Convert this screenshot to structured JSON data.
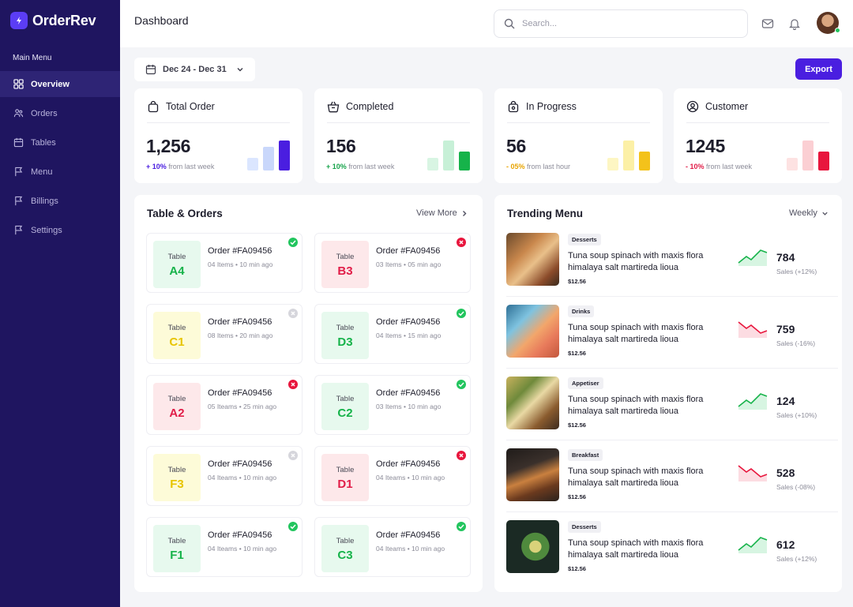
{
  "brand": {
    "name": "OrderRev"
  },
  "sidebar": {
    "heading": "Main Menu",
    "items": [
      {
        "label": "Overview",
        "icon": "grid-icon",
        "active": true
      },
      {
        "label": "Orders",
        "icon": "users-icon"
      },
      {
        "label": "Tables",
        "icon": "calendar-icon"
      },
      {
        "label": "Menu",
        "icon": "flag-icon"
      },
      {
        "label": "Billings",
        "icon": "flag-icon"
      },
      {
        "label": "Settings",
        "icon": "flag-icon"
      }
    ]
  },
  "header": {
    "title": "Dashboard",
    "search_placeholder": "Search..."
  },
  "toolbar": {
    "date_range": "Dec 24 - Dec 31",
    "export_label": "Export"
  },
  "stats": [
    {
      "title": "Total Order",
      "icon": "bag-icon",
      "value": "1,256",
      "change": "+ 10%",
      "note": "from last week",
      "change_color": "#4a1ee0",
      "bar_colors": [
        "#dbe6ff",
        "#c9d7fb",
        "#4a1ee0"
      ],
      "bar_levels": [
        0.4,
        0.75,
        0.95
      ]
    },
    {
      "title": "Completed",
      "icon": "basket-icon",
      "value": "156",
      "change": "+ 10%",
      "note": "from last week",
      "change_color": "#16a34a",
      "bar_colors": [
        "#d8f5e3",
        "#c7f0d7",
        "#16b34a"
      ],
      "bar_levels": [
        0.4,
        0.95,
        0.6
      ]
    },
    {
      "title": "In Progress",
      "icon": "lock-bag-icon",
      "value": "56",
      "change": "- 05%",
      "note": "from last hour",
      "change_color": "#e8a400",
      "bar_colors": [
        "#fdf6c3",
        "#fcf0a6",
        "#f3c21b"
      ],
      "bar_levels": [
        0.4,
        0.95,
        0.6
      ]
    },
    {
      "title": "Customer",
      "icon": "user-circle-icon",
      "value": "1245",
      "change": "- 10%",
      "note": "from last week",
      "change_color": "#e11d48",
      "bar_colors": [
        "#fde2e2",
        "#fbcfd3",
        "#e8163d"
      ],
      "bar_levels": [
        0.4,
        0.95,
        0.6
      ]
    }
  ],
  "tables_panel": {
    "title": "Table & Orders",
    "link": "View More",
    "orders": [
      {
        "table_label": "Table",
        "table": "A4",
        "order_label": "Order",
        "order_id": "#FA09456",
        "items": "04 Items",
        "time": "10 min ago",
        "status": "done"
      },
      {
        "table_label": "Table",
        "table": "B3",
        "order_label": "Order",
        "order_id": "#FA09456",
        "items": "03 Items",
        "time": "05 min ago",
        "status": "cancel"
      },
      {
        "table_label": "Table",
        "table": "C1",
        "order_label": "Order",
        "order_id": "#FA09456",
        "items": "08 Items",
        "time": "20 min ago",
        "status": "pending"
      },
      {
        "table_label": "Table",
        "table": "D3",
        "order_label": "Order",
        "order_id": "#FA09456",
        "items": "04 Items",
        "time": "15 min ago",
        "status": "done"
      },
      {
        "table_label": "Table",
        "table": "A2",
        "order_label": "Order",
        "order_id": "#FA09456",
        "items": "05 Iteams",
        "time": "25 min ago",
        "status": "cancel"
      },
      {
        "table_label": "Table",
        "table": "C2",
        "order_label": "Order",
        "order_id": "#FA09456",
        "items": "03 Items",
        "time": "10 min ago",
        "status": "done"
      },
      {
        "table_label": "Table",
        "table": "F3",
        "order_label": "Order",
        "order_id": "#FA09456",
        "items": "04 Iteams",
        "time": "10 min ago",
        "status": "pending"
      },
      {
        "table_label": "Table",
        "table": "D1",
        "order_label": "Order",
        "order_id": "#FA09456",
        "items": "04 Iteams",
        "time": "10 min ago",
        "status": "cancel"
      },
      {
        "table_label": "Table",
        "table": "F1",
        "order_label": "Order",
        "order_id": "#FA09456",
        "items": "04 Iteams",
        "time": "10 min ago",
        "status": "done"
      },
      {
        "table_label": "Table",
        "table": "C3",
        "order_label": "Order",
        "order_id": "#FA09456",
        "items": "04 Iteams",
        "time": "10 min ago",
        "status": "done"
      }
    ]
  },
  "trending_panel": {
    "title": "Trending Menu",
    "filter": "Weekly",
    "items": [
      {
        "category": "Desserts",
        "line1": "Tuna soup spinach with maxis flora",
        "line2": "himalaya salt martireda lioua",
        "price": "$12.56",
        "sales": "784",
        "change": "Sales (+12%)",
        "trend": "up",
        "thumb": "wrap"
      },
      {
        "category": "Drinks",
        "line1": "Tuna soup spinach with maxis flora",
        "line2": "himalaya salt martireda lioua",
        "price": "$12.56",
        "sales": "759",
        "change": "Sales (-16%)",
        "trend": "down",
        "thumb": "drinks"
      },
      {
        "category": "Appetiser",
        "line1": "Tuna soup spinach with maxis flora",
        "line2": "himalaya salt martireda lioua",
        "price": "$12.56",
        "sales": "124",
        "change": "Sales (+10%)",
        "trend": "up",
        "thumb": "appetiser"
      },
      {
        "category": "Breakfast",
        "line1": "Tuna soup spinach with maxis flora",
        "line2": "himalaya salt martireda lioua",
        "price": "$12.56",
        "sales": "528",
        "change": "Sales (-08%)",
        "trend": "down",
        "thumb": "burger"
      },
      {
        "category": "Desserts",
        "line1": "Tuna soup spinach with maxis flora",
        "line2": "himalaya salt martireda lioua",
        "price": "$12.56",
        "sales": "612",
        "change": "Sales (+12%)",
        "trend": "up",
        "thumb": "bowl"
      }
    ]
  },
  "colors": {
    "sidebar": "#1f1560",
    "accent": "#4a1ee0",
    "success": "#16b34a",
    "danger": "#e8163d",
    "warning": "#f3c21b"
  }
}
